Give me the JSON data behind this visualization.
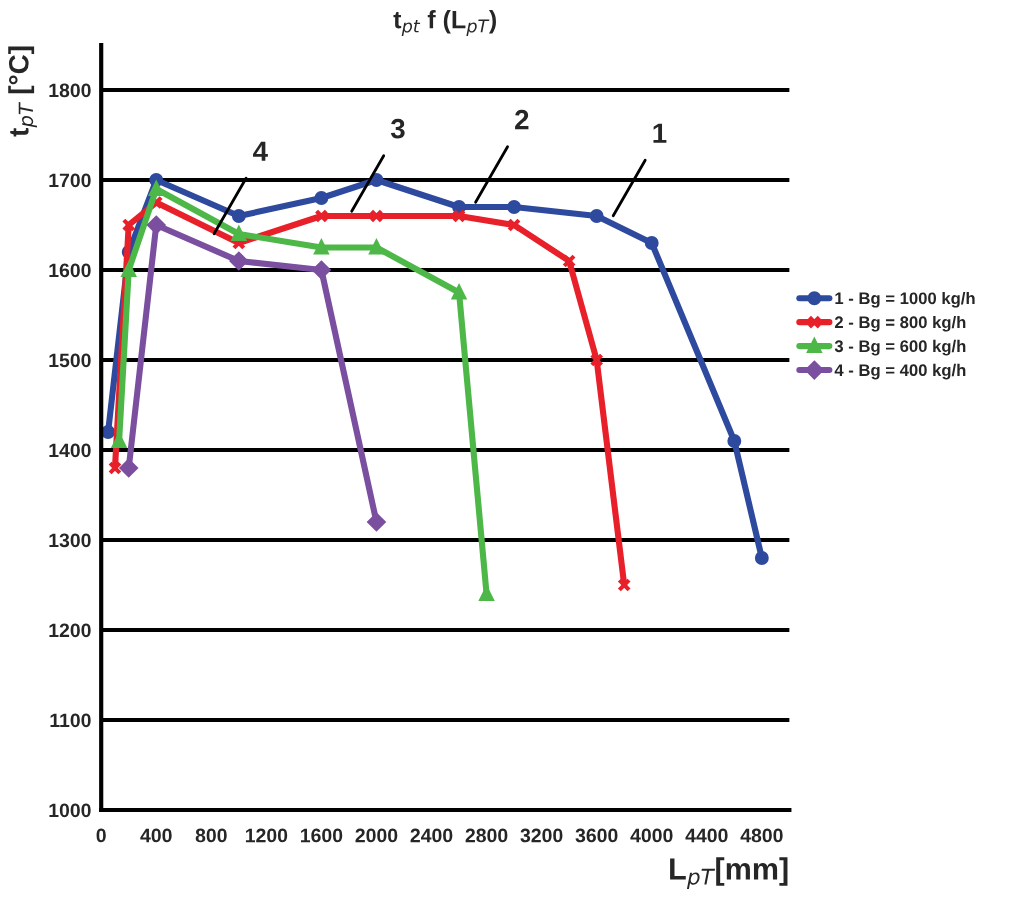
{
  "chart_data": {
    "type": "line",
    "title": "t$_{pt}$ f (L$_{pT}$)",
    "xlabel": "L$_{pT}$[mm]",
    "ylabel": "t$_{pT}$ [°C]",
    "xlim": [
      0,
      5000
    ],
    "xticks": [
      0,
      400,
      800,
      1200,
      1600,
      2000,
      2400,
      2800,
      3200,
      3600,
      4000,
      4400,
      4800
    ],
    "ylim": [
      1000,
      1850
    ],
    "yticks": [
      1000,
      1100,
      1200,
      1300,
      1400,
      1500,
      1600,
      1700,
      1800
    ],
    "grid": "y",
    "legend": "right",
    "series": [
      {
        "name": "1 - Bg = 1000 kg/h",
        "color": "#2e4a9e",
        "marker": "circle",
        "x": [
          50,
          200,
          400,
          1000,
          1600,
          2000,
          2600,
          3000,
          3600,
          4000,
          4600,
          4800
        ],
        "values": [
          1420,
          1620,
          1700,
          1660,
          1680,
          1700,
          1670,
          1670,
          1660,
          1630,
          1410,
          1280
        ]
      },
      {
        "name": "2 - Bg = 800 kg/h",
        "color": "#e8202a",
        "marker": "cross",
        "x": [
          100,
          200,
          400,
          1000,
          1600,
          2000,
          2600,
          3000,
          3400,
          3600,
          3800
        ],
        "values": [
          1380,
          1650,
          1675,
          1630,
          1660,
          1660,
          1660,
          1650,
          1610,
          1500,
          1250
        ]
      },
      {
        "name": "3 - Bg = 600 kg/h",
        "color": "#4db848",
        "marker": "triangle",
        "x": [
          130,
          200,
          400,
          1000,
          1600,
          2000,
          2600,
          2800
        ],
        "values": [
          1410,
          1600,
          1690,
          1640,
          1625,
          1625,
          1575,
          1240
        ]
      },
      {
        "name": "4 - Bg = 400 kg/h",
        "color": "#7b4fa0",
        "marker": "diamond",
        "x": [
          200,
          400,
          1000,
          1600,
          2000
        ],
        "values": [
          1380,
          1650,
          1610,
          1600,
          1320
        ]
      }
    ],
    "annotations": [
      {
        "text": "1",
        "x": 3700,
        "y": 1655
      },
      {
        "text": "2",
        "x": 2700,
        "y": 1670
      },
      {
        "text": "3",
        "x": 1800,
        "y": 1660
      },
      {
        "text": "4",
        "x": 800,
        "y": 1635
      }
    ]
  }
}
